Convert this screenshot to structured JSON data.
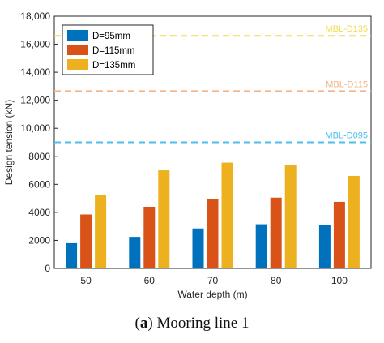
{
  "caption": {
    "label": "a",
    "text": " Mooring line 1"
  },
  "colors": {
    "series": [
      "#0072BD",
      "#D95319",
      "#EDB120"
    ],
    "mbl": [
      "#4DBEEE",
      "#F2B488",
      "#F2DB52"
    ],
    "axis": "#262626"
  },
  "chart_data": {
    "type": "bar",
    "xlabel": "Water depth (m)",
    "ylabel": "Design tension (kN)",
    "ylim": [
      0,
      18000
    ],
    "yticks": [
      0,
      2000,
      4000,
      6000,
      8000,
      10000,
      12000,
      14000,
      16000,
      18000
    ],
    "ytick_labels": [
      "0",
      "2000",
      "4000",
      "6000",
      "8000",
      "10,000",
      "12,000",
      "14,000",
      "16,000",
      "18,000"
    ],
    "categories": [
      "50",
      "60",
      "70",
      "80",
      "100"
    ],
    "series": [
      {
        "name": "D=95mm",
        "values": [
          1800,
          2250,
          2850,
          3150,
          3100
        ]
      },
      {
        "name": "D=115mm",
        "values": [
          3850,
          4400,
          4950,
          5050,
          4750
        ]
      },
      {
        "name": "D=135mm",
        "values": [
          5250,
          7000,
          7550,
          7350,
          6600
        ]
      }
    ],
    "reference_lines": [
      {
        "label": "MBL-D095",
        "value": 9000
      },
      {
        "label": "MBL-D115",
        "value": 12650
      },
      {
        "label": "MBL-D135",
        "value": 16600
      }
    ],
    "legend_position": "top-left",
    "grid": false
  }
}
